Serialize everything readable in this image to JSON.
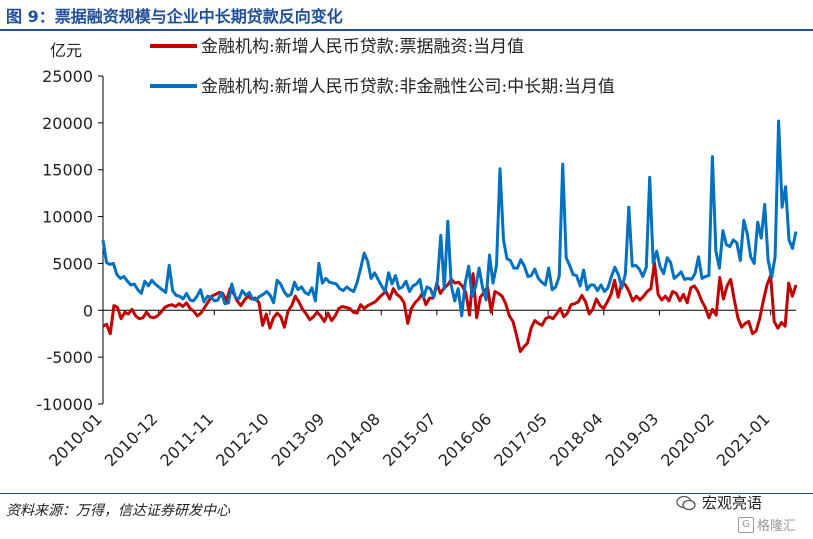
{
  "header": {
    "title": "图 9：票据融资规模与企业中长期贷款反向变化"
  },
  "footer": {
    "source": "资料来源：万得，信达证券研发中心",
    "watermark": "宏观亮语",
    "watermark2": "格隆汇",
    "watermark2_icon": "G"
  },
  "chart_data": {
    "type": "line",
    "ylabel": "亿元",
    "ylim": [
      -10000,
      25000
    ],
    "yticks": [
      -10000,
      -5000,
      0,
      5000,
      10000,
      15000,
      20000,
      25000
    ],
    "x_tick_labels": [
      "2010-01",
      "2010-12",
      "2011-11",
      "2012-10",
      "2013-09",
      "2014-08",
      "2015-07",
      "2016-06",
      "2017-05",
      "2018-04",
      "2019-03",
      "2020-02",
      "2021-01"
    ],
    "x_start": "2010-01",
    "x_end": "2021-06",
    "grid": false,
    "legend_position": "top",
    "series": [
      {
        "name": "金融机构:新增人民币贷款:票据融资:当月值",
        "color": "#c00000",
        "values": [
          -1700,
          -1500,
          -2500,
          500,
          300,
          -900,
          -200,
          -400,
          100,
          -600,
          -900,
          -800,
          -200,
          -700,
          -800,
          -600,
          -200,
          300,
          500,
          600,
          400,
          700,
          400,
          800,
          200,
          -100,
          -600,
          -300,
          300,
          900,
          1500,
          1700,
          1900,
          1800,
          1000,
          2300,
          1800,
          1000,
          500,
          1100,
          1500,
          1200,
          1300,
          800,
          -1600,
          -400,
          -1900,
          -800,
          -300,
          -700,
          -1800,
          -100,
          500,
          1500,
          900,
          100,
          -400,
          -1000,
          -700,
          -200,
          -600,
          -1200,
          -300,
          -1100,
          -600,
          200,
          400,
          300,
          200,
          -200,
          -300,
          600,
          200,
          500,
          700,
          900,
          1300,
          1700,
          2000,
          1200,
          2300,
          1700,
          1400,
          800,
          -1400,
          200,
          800,
          1200,
          1800,
          600,
          1300,
          1300,
          2900,
          1800,
          2400,
          2700,
          3300,
          2900,
          3000,
          2600,
          1900,
          -500,
          3900,
          -800,
          1400,
          1900,
          2500,
          -200,
          2000,
          1800,
          1500,
          700,
          -600,
          -1200,
          -2700,
          -4400,
          -3900,
          -3500,
          -1900,
          -1100,
          -1400,
          -1600,
          -900,
          -700,
          -900,
          -400,
          200,
          -700,
          -300,
          600,
          700,
          900,
          1600,
          900,
          -400,
          100,
          1200,
          500,
          200,
          900,
          1700,
          3200,
          1400,
          3000,
          2700,
          2000,
          1000,
          1500,
          1100,
          1500,
          2000,
          2300,
          5100,
          1700,
          1100,
          1500,
          1000,
          2000,
          1800,
          1000,
          1700,
          800,
          2400,
          2600,
          2000,
          1000,
          300,
          -800,
          100,
          -500,
          3500,
          1200,
          2600,
          3300,
          1100,
          -800,
          -1800,
          -1400,
          -1200,
          -2500,
          -2200,
          -900,
          1000,
          2700,
          3700,
          -1200,
          -1900,
          -1300,
          -1700,
          2900,
          1500,
          2700
        ]
      },
      {
        "name": "金融机构:新增人民币贷款:非金融性公司:中长期:当月值",
        "color": "#0070c0",
        "values": [
          7500,
          5100,
          4900,
          5000,
          3800,
          3400,
          3600,
          3100,
          2700,
          2800,
          2200,
          1800,
          3100,
          2600,
          3200,
          2800,
          2500,
          2200,
          1900,
          4800,
          2100,
          1600,
          1500,
          1200,
          1800,
          1100,
          1000,
          1500,
          2200,
          900,
          1500,
          1400,
          1000,
          1100,
          1900,
          700,
          800,
          2800,
          1400,
          1200,
          2100,
          1600,
          1900,
          1200,
          1100,
          1500,
          1700,
          2000,
          1600,
          800,
          3200,
          2800,
          2000,
          1500,
          1700,
          3000,
          2200,
          2500,
          1900,
          1700,
          2400,
          1000,
          5000,
          2900,
          3400,
          3000,
          2900,
          2800,
          2300,
          2100,
          2500,
          2200,
          2000,
          3000,
          4500,
          6100,
          5200,
          3400,
          4000,
          3300,
          2600,
          2000,
          4000,
          2800,
          3700,
          2300,
          2500,
          3100,
          2000,
          2600,
          2800,
          3300,
          1300,
          2500,
          2300,
          1400,
          3000,
          8000,
          2300,
          9500,
          2700,
          1000,
          2300,
          -600,
          2900,
          4700,
          1500,
          2500,
          4500,
          2400,
          1100,
          5900,
          2900,
          4800,
          15100,
          7500,
          5500,
          5300,
          4500,
          4500,
          5400,
          4700,
          3600,
          3700,
          4400,
          3400,
          3000,
          2700,
          4500,
          2200,
          2500,
          3600,
          15600,
          5600,
          4800,
          3800,
          3700,
          2600,
          4300,
          2200,
          2700,
          2700,
          2100,
          2700,
          2000,
          2400,
          3600,
          4600,
          3800,
          2400,
          3900,
          11000,
          4700,
          4800,
          4400,
          3600,
          4600,
          14200,
          5000,
          6300,
          4600,
          3900,
          5600,
          5100,
          3400,
          3700,
          4100,
          3300,
          3400,
          3300,
          3900,
          5700,
          3400,
          3600,
          3700,
          16400,
          6300,
          4500,
          8500,
          7000,
          6800,
          7500,
          7200,
          5300,
          9600,
          8200,
          5700,
          5000,
          9400,
          7700,
          11300,
          5400,
          3500,
          5700,
          20200,
          11000,
          13200,
          7500,
          6600,
          8400
        ]
      }
    ]
  }
}
